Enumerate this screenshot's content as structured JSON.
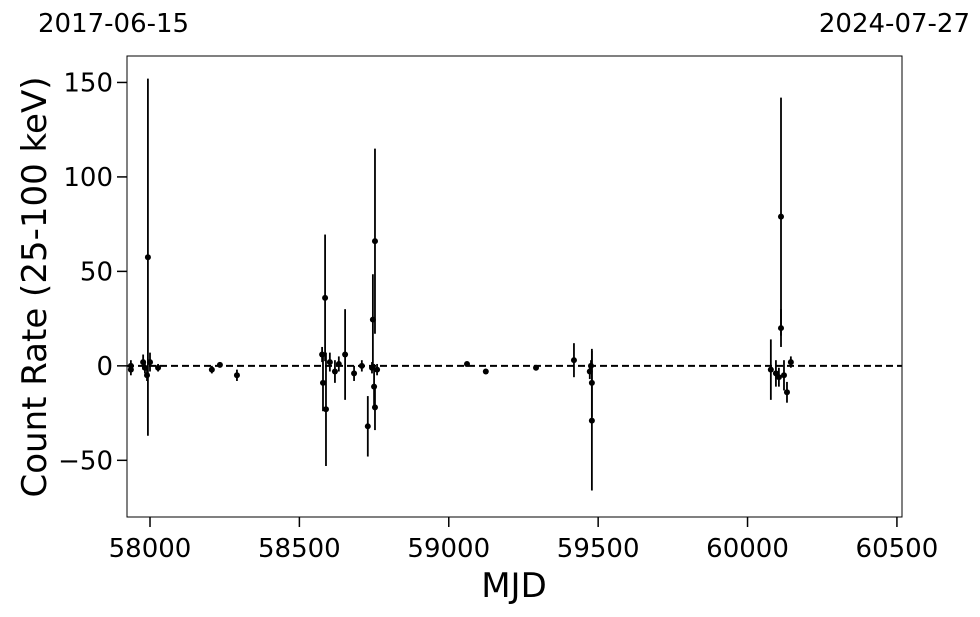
{
  "chart_data": {
    "type": "errorbar",
    "xlabel": "MJD",
    "ylabel": "Count Rate (25-100 keV)",
    "top_left_label": "2017-06-15",
    "top_right_label": "2024-07-27",
    "xlim": [
      57923,
      60517
    ],
    "ylim": [
      -80,
      164
    ],
    "xticks": [
      58000,
      58500,
      59000,
      59500,
      60000,
      60500
    ],
    "yticks": [
      {
        "value": -50,
        "label": "−50"
      },
      0,
      50,
      100,
      150
    ],
    "hline": 0,
    "color": "#000000",
    "series": [
      {
        "name": "data",
        "color": "#000000",
        "x": [
          57936,
          57936,
          57977,
          57983,
          57993,
          57990,
          58000,
          58027,
          58207,
          58234,
          58291,
          58579,
          58586,
          58589,
          58576,
          58602,
          58619,
          58632,
          58653,
          58683,
          58709,
          58729,
          58743,
          58746,
          58750,
          58753,
          58753,
          58760,
          59061,
          59124,
          59292,
          59419,
          59472,
          59479,
          59479,
          59476,
          60078,
          60095,
          60112,
          60112,
          60122,
          60132,
          60145,
          60105
        ],
        "values": [
          0,
          -2,
          2,
          -1,
          57.5,
          -5,
          2,
          -1,
          -2,
          0.5,
          -5,
          -9,
          36,
          -23,
          6,
          2,
          -3,
          1,
          6,
          -4,
          0,
          -32,
          -1,
          24.5,
          -11,
          66,
          -22,
          -2,
          1,
          -3,
          -1,
          3,
          -3,
          -9,
          -29,
          0,
          -2,
          -4,
          79,
          20,
          -5,
          -14,
          2,
          -6
        ],
        "errors": [
          3,
          3,
          4,
          3,
          94.5,
          3,
          5,
          2,
          2,
          1,
          3,
          15,
          33.5,
          30,
          4,
          5,
          6,
          4,
          24,
          4,
          3,
          16,
          3,
          24,
          12,
          49,
          12,
          3,
          1,
          1,
          1,
          9,
          4,
          18,
          37,
          3,
          16,
          7,
          63,
          10,
          8,
          5.5,
          3,
          5
        ]
      }
    ]
  }
}
